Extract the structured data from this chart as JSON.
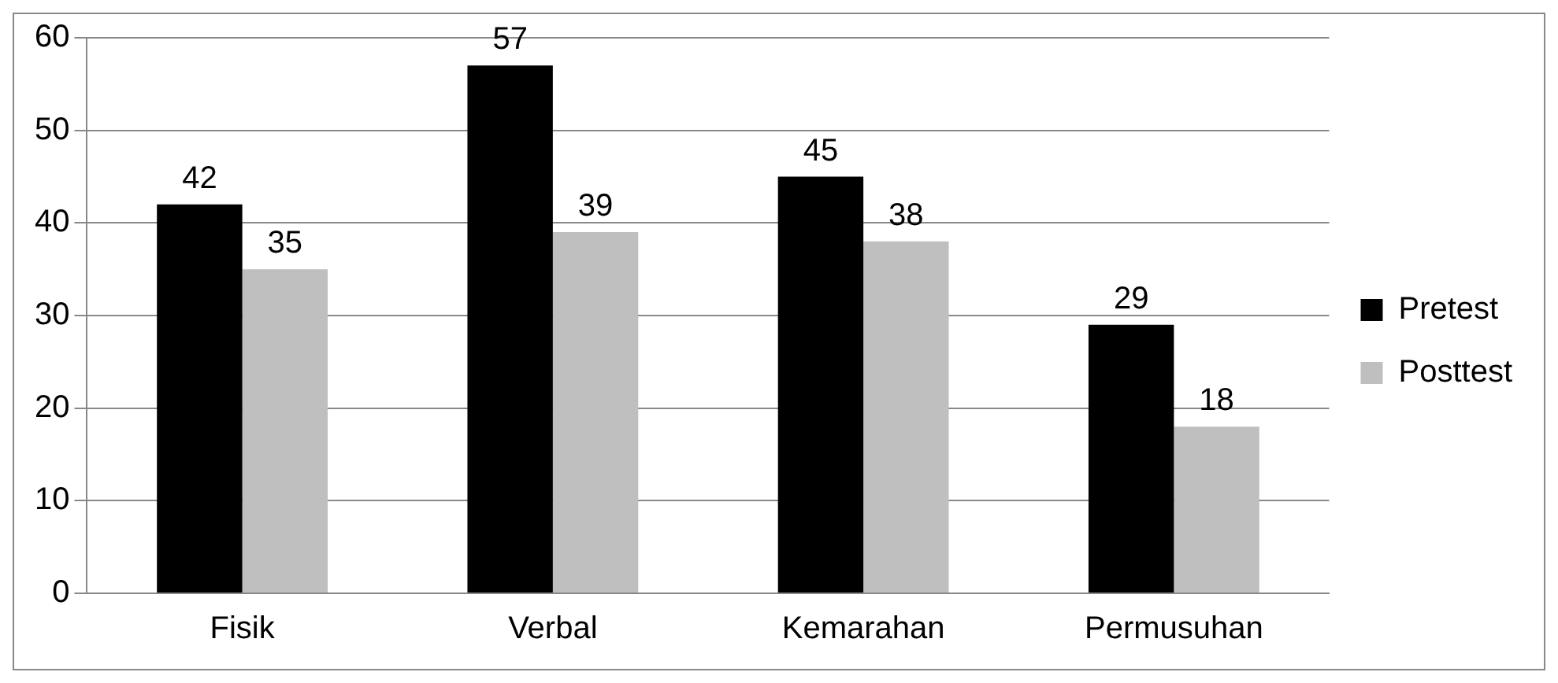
{
  "chart_data": {
    "type": "bar",
    "categories": [
      "Fisik",
      "Verbal",
      "Kemarahan",
      "Permusuhan"
    ],
    "series": [
      {
        "name": "Pretest",
        "color": "#000000",
        "values": [
          42,
          57,
          45,
          29
        ]
      },
      {
        "name": "Posttest",
        "color": "#bfbfbf",
        "values": [
          35,
          39,
          38,
          18
        ]
      }
    ],
    "ylim": [
      0,
      60
    ],
    "yticks": [
      0,
      10,
      20,
      30,
      40,
      50,
      60
    ],
    "grid": "y",
    "legend": "right",
    "data_labels": true
  }
}
